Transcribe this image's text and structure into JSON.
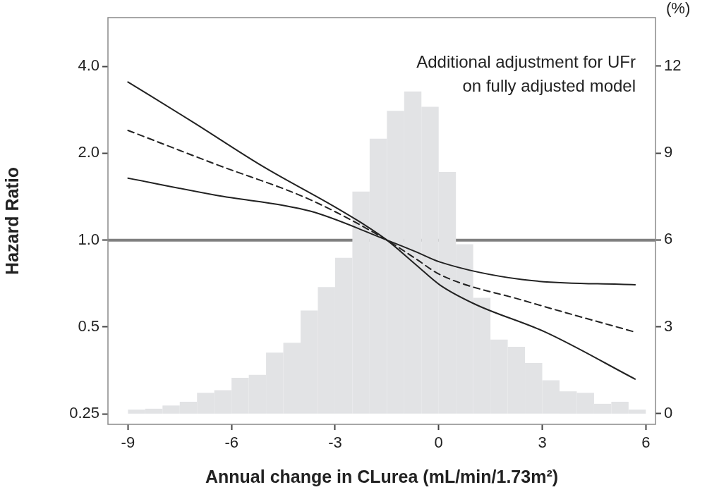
{
  "chart_data": {
    "type": "line",
    "xlabel": "Annual change in CLurea (mL/min/1.73m²)",
    "ylabel": "Hazard Ratio",
    "y2label": "(%)",
    "annotations": [
      "Additional adjustment for UFr\non fully adjusted model"
    ],
    "log": "y",
    "grid": false,
    "legend": false,
    "marker": "none",
    "xlim": [
      -9.58,
      6.28
    ],
    "xticks": [
      -9,
      -6,
      -3,
      0,
      3,
      6
    ],
    "ylim": [
      0.23,
      5.9
    ],
    "yticks": [
      {
        "value": 0.25,
        "label": "0.25"
      },
      {
        "value": 0.5,
        "label": "0.5"
      },
      {
        "value": 1,
        "label": "1.0"
      },
      {
        "value": 2,
        "label": "2.0"
      },
      {
        "value": 4,
        "label": "4.0"
      }
    ],
    "y2lim": [
      -0.37,
      13.68
    ],
    "y2ticks": [
      0,
      3,
      6,
      9,
      12
    ],
    "ref_lines": [
      {
        "axis": "y",
        "value": 1,
        "color": "#808080"
      }
    ],
    "series": [
      {
        "type": "histogram",
        "axis": "y2",
        "color": "#e2e3e5",
        "bins": [
          -9,
          -8.5,
          -8,
          -7.5,
          -7,
          -6.5,
          -6,
          -5.5,
          -5,
          -4.5,
          -4,
          -3.5,
          -3,
          -2.5,
          -2,
          -1.5,
          -1,
          -0.5,
          0,
          0.5,
          1,
          1.5,
          2,
          2.5,
          3,
          3.5,
          4,
          4.5,
          5,
          5.5,
          6
        ],
        "values": [
          0.14,
          0.17,
          0.28,
          0.41,
          0.72,
          0.81,
          1.24,
          1.34,
          2.11,
          2.45,
          3.56,
          4.37,
          5.38,
          7.67,
          9.5,
          10.46,
          11.13,
          10.6,
          8.35,
          5.85,
          4.0,
          2.56,
          2.31,
          1.75,
          1.15,
          0.77,
          0.72,
          0.34,
          0.41,
          0.14
        ]
      },
      {
        "color": "#222222",
        "line_style": "solid",
        "x": [
          -9,
          -7.13,
          -5.09,
          -3.04,
          -2.15,
          -1.5,
          -0.65,
          0.03,
          1.05,
          3.09,
          5.69
        ],
        "values": [
          3.53,
          2.57,
          1.8,
          1.31,
          1.13,
          1.0,
          0.82,
          0.7,
          0.6,
          0.48,
          0.33
        ]
      },
      {
        "color": "#222222",
        "line_style": "dashed",
        "x": [
          -9,
          -6.45,
          -3.72,
          -1.5,
          -0.65,
          0.03,
          2.41,
          5.69
        ],
        "values": [
          2.4,
          1.83,
          1.38,
          1.0,
          0.86,
          0.76,
          0.62,
          0.48
        ]
      },
      {
        "color": "#222222",
        "line_style": "solid",
        "x": [
          -9,
          -6.45,
          -3.72,
          -1.5,
          -0.65,
          0.03,
          2.41,
          5.69
        ],
        "values": [
          1.64,
          1.43,
          1.26,
          1.0,
          0.91,
          0.84,
          0.73,
          0.7
        ]
      }
    ]
  }
}
